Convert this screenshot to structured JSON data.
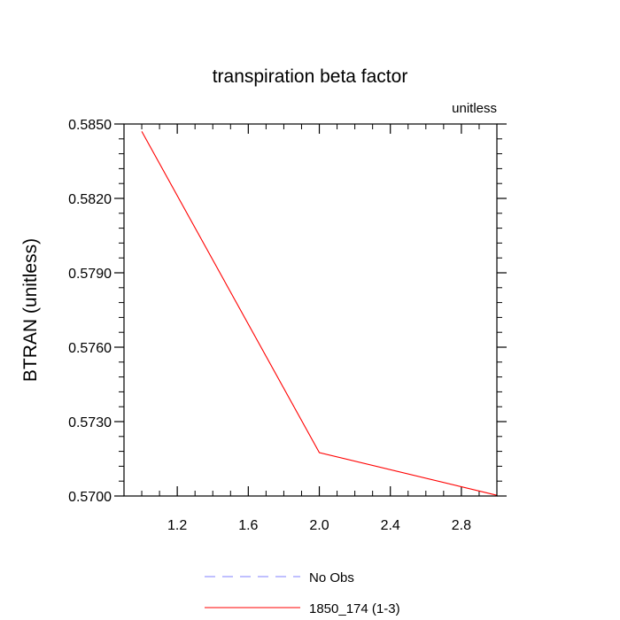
{
  "chart_data": {
    "type": "line",
    "title": "transpiration beta factor",
    "units_label": "unitless",
    "xlabel": "",
    "ylabel": "BTRAN  (unitless)",
    "xlim": [
      0.9,
      3.0
    ],
    "ylim": [
      0.57,
      0.585
    ],
    "x_ticks": [
      {
        "value": 1.2,
        "label": "1.2"
      },
      {
        "value": 1.6,
        "label": "1.6"
      },
      {
        "value": 2.0,
        "label": "2.0"
      },
      {
        "value": 2.4,
        "label": "2.4"
      },
      {
        "value": 2.8,
        "label": "2.8"
      }
    ],
    "y_ticks": [
      {
        "value": 0.585,
        "label": "0.5850"
      },
      {
        "value": 0.582,
        "label": "0.5820"
      },
      {
        "value": 0.579,
        "label": "0.5790"
      },
      {
        "value": 0.576,
        "label": "0.5760"
      },
      {
        "value": 0.573,
        "label": "0.5730"
      },
      {
        "value": 0.57,
        "label": "0.5700"
      }
    ],
    "grid": false,
    "legend_position": "bottom",
    "series": [
      {
        "name": "No Obs",
        "color": "#8080ff",
        "dash": "dashed",
        "x": [],
        "y": []
      },
      {
        "name": "1850_174 (1-3)",
        "color": "#ff0000",
        "dash": "solid",
        "x": [
          1.0,
          2.0,
          3.0
        ],
        "y": [
          0.5847,
          0.57175,
          0.57003
        ]
      }
    ]
  }
}
